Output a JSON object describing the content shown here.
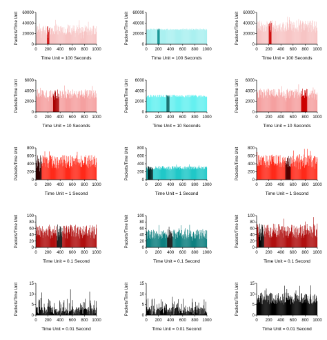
{
  "chart_data": [
    {
      "type": "bar",
      "color": "#f7c4c4",
      "highlight": "#cc0000",
      "ylabel": "Packets/Time Unit",
      "xlabel": "Time Unit = 100 Seconds",
      "xlim": [
        0,
        1000
      ],
      "ylim": [
        0,
        60000
      ],
      "yticks": [
        "0",
        "20000",
        "40000",
        "60000"
      ],
      "xticks": [
        "0",
        "200",
        "400",
        "600",
        "800",
        "1000"
      ],
      "base": 25000,
      "amp": 20000,
      "spike": 1,
      "seed": 11,
      "highlight_x": [
        180,
        220
      ],
      "highlight_level": 0.85
    },
    {
      "type": "bar",
      "color": "#aaf0f0",
      "highlight": "#008b8b",
      "ylabel": "Packets/Time Unit",
      "xlabel": "Time Unit = 100 Seconds",
      "xlim": [
        0,
        1000
      ],
      "ylim": [
        0,
        60000
      ],
      "yticks": [
        "0",
        "20000",
        "40000",
        "60000"
      ],
      "xticks": [
        "0",
        "200",
        "400",
        "600",
        "800",
        "1000"
      ],
      "base": 28000,
      "amp": 1500,
      "spike": 0,
      "seed": 12,
      "highlight_x": [
        180,
        220
      ],
      "highlight_level": 0.5,
      "flat": 1
    },
    {
      "type": "bar",
      "color": "#f7c4c4",
      "highlight": "#cc0000",
      "ylabel": "Packets/Time Unit",
      "xlabel": "Time Unit = 100 Seconds",
      "xlim": [
        0,
        1000
      ],
      "ylim": [
        0,
        60000
      ],
      "yticks": [
        "0",
        "20000",
        "40000",
        "60000"
      ],
      "xticks": [
        "0",
        "200",
        "400",
        "600",
        "800",
        "1000"
      ],
      "base": 32000,
      "amp": 22000,
      "spike": 1,
      "seed": 13,
      "highlight_x": [
        200,
        240
      ],
      "highlight_level": 0.45
    },
    {
      "type": "bar",
      "color": "#f5a0a0",
      "highlight": "#aa0000",
      "ylabel": "Packets/Time Unit",
      "xlabel": "Time Unit = 10 Seconds",
      "xlim": [
        0,
        1000
      ],
      "ylim": [
        0,
        6000
      ],
      "yticks": [
        "0",
        "2000",
        "4000",
        "6000"
      ],
      "xticks": [
        "0",
        "200",
        "400",
        "600",
        "800",
        "1000"
      ],
      "base": 3200,
      "amp": 1800,
      "spike": 1,
      "seed": 21,
      "highlight_x": [
        280,
        380
      ],
      "highlight_level": 0.9
    },
    {
      "type": "bar",
      "color": "#66f0f0",
      "highlight": "#006060",
      "ylabel": "Packets/Time Unit",
      "xlabel": "Time Unit = 10 Seconds",
      "xlim": [
        0,
        1000
      ],
      "ylim": [
        0,
        6000
      ],
      "yticks": [
        "0",
        "2000",
        "4000",
        "6000"
      ],
      "xticks": [
        "0",
        "200",
        "400",
        "600",
        "800",
        "1000"
      ],
      "base": 3000,
      "amp": 250,
      "spike": 0,
      "seed": 22,
      "highlight_x": [
        330,
        380
      ],
      "highlight_level": 0.5,
      "flat": 1
    },
    {
      "type": "bar",
      "color": "#f5a0a0",
      "highlight": "#cc0000",
      "ylabel": "Packets/Time Unit",
      "xlabel": "Time Unit = 10 Seconds",
      "xlim": [
        0,
        1000
      ],
      "ylim": [
        0,
        6000
      ],
      "yticks": [
        "0",
        "2000",
        "4000",
        "6000"
      ],
      "xticks": [
        "0",
        "200",
        "400",
        "600",
        "800",
        "1000"
      ],
      "base": 3300,
      "amp": 1900,
      "spike": 1,
      "seed": 23,
      "highlight_x": [
        730,
        830
      ],
      "highlight_level": 0.55
    },
    {
      "type": "bar",
      "color": "#ff2a1a",
      "highlight": "#330000",
      "ylabel": "Packets/Time Unit",
      "xlabel": "Time Unit = 1 Second",
      "xlim": [
        0,
        1000
      ],
      "ylim": [
        0,
        800
      ],
      "yticks": [
        "0",
        "200",
        "400",
        "600",
        "800"
      ],
      "xticks": [
        "0",
        "200",
        "400",
        "600",
        "800",
        "1000"
      ],
      "base": 420,
      "amp": 330,
      "spike": 1,
      "seed": 31,
      "highlight_x": [
        0,
        90
      ],
      "highlight_level": 0.6
    },
    {
      "type": "bar",
      "color": "#20c8c8",
      "highlight": "#002828",
      "ylabel": "Packets/Time Unit",
      "xlabel": "Time Unit = 1 Second",
      "xlim": [
        0,
        1000
      ],
      "ylim": [
        0,
        800
      ],
      "yticks": [
        "0",
        "200",
        "400",
        "600",
        "800"
      ],
      "xticks": [
        "0",
        "200",
        "400",
        "600",
        "800",
        "1000"
      ],
      "base": 290,
      "amp": 90,
      "spike": 0,
      "seed": 32,
      "highlight_x": [
        20,
        110
      ],
      "highlight_level": 0.5
    },
    {
      "type": "bar",
      "color": "#ff2a1a",
      "highlight": "#550000",
      "ylabel": "Packets/Time Unit",
      "xlabel": "Time Unit = 1 Second",
      "xlim": [
        0,
        1000
      ],
      "ylim": [
        0,
        800
      ],
      "yticks": [
        "0",
        "200",
        "400",
        "600",
        "800"
      ],
      "xticks": [
        "0",
        "200",
        "400",
        "600",
        "800",
        "1000"
      ],
      "base": 430,
      "amp": 340,
      "spike": 1,
      "seed": 33,
      "highlight_x": [
        470,
        560
      ],
      "highlight_level": 0.6
    },
    {
      "type": "bar",
      "color": "#b01010",
      "highlight": "#000000",
      "ylabel": "Packets/Time Unit",
      "xlabel": "Time Unit = 0.1 Second",
      "xlim": [
        0,
        1000
      ],
      "ylim": [
        0,
        100
      ],
      "yticks": [
        "0",
        "20",
        "40",
        "60",
        "80",
        "100"
      ],
      "xticks": [
        "0",
        "200",
        "400",
        "600",
        "800",
        "1000"
      ],
      "base": 45,
      "amp": 45,
      "spike": 1,
      "seed": 41,
      "highlight_x": [
        340,
        430
      ],
      "highlight_level": 0.7
    },
    {
      "type": "bar",
      "color": "#0f8080",
      "highlight": "#000000",
      "ylabel": "Packets/Time Unit",
      "xlabel": "Time Unit = 0.1 Second",
      "xlim": [
        0,
        1000
      ],
      "ylim": [
        0,
        100
      ],
      "yticks": [
        "0",
        "20",
        "40",
        "60",
        "80",
        "100"
      ],
      "xticks": [
        "0",
        "200",
        "400",
        "600",
        "800",
        "1000"
      ],
      "base": 38,
      "amp": 32,
      "spike": 1,
      "seed": 42,
      "highlight_x": [
        340,
        430
      ],
      "highlight_level": 0.55
    },
    {
      "type": "bar",
      "color": "#b01010",
      "highlight": "#000000",
      "ylabel": "Packets/Time Unit",
      "xlabel": "Time Unit = 0.1 Second",
      "xlim": [
        0,
        1000
      ],
      "ylim": [
        0,
        100
      ],
      "yticks": [
        "0",
        "20",
        "40",
        "60",
        "80",
        "100"
      ],
      "xticks": [
        "0",
        "200",
        "400",
        "600",
        "800",
        "1000"
      ],
      "base": 48,
      "amp": 45,
      "spike": 1,
      "seed": 43,
      "highlight_x": [
        30,
        120
      ],
      "highlight_level": 0.75
    },
    {
      "type": "bar",
      "color": "#000000",
      "highlight": "#000000",
      "ylabel": "Packets/Time Unit",
      "xlabel": "Time Unit = 0.01 Second",
      "xlim": [
        0,
        1000
      ],
      "ylim": [
        0,
        15
      ],
      "yticks": [
        "0",
        "5",
        "10",
        "15"
      ],
      "xticks": [
        "0",
        "200",
        "400",
        "600",
        "800",
        "1000"
      ],
      "base": 4,
      "amp": 9,
      "spike": 1,
      "seed": 51,
      "sparse": 1
    },
    {
      "type": "bar",
      "color": "#000000",
      "highlight": "#000000",
      "ylabel": "Packets/Time Unit",
      "xlabel": "Time Unit = 0.01 Second",
      "xlim": [
        0,
        1000
      ],
      "ylim": [
        0,
        15
      ],
      "yticks": [
        "0",
        "5",
        "10",
        "15"
      ],
      "xticks": [
        "0",
        "200",
        "400",
        "600",
        "800",
        "1000"
      ],
      "base": 4,
      "amp": 9,
      "spike": 1,
      "seed": 52,
      "sparse": 1
    },
    {
      "type": "bar",
      "color": "#000000",
      "highlight": "#000000",
      "ylabel": "Packets/Time Unit",
      "xlabel": "Time Unit = 0.01 Second",
      "xlim": [
        0,
        1000
      ],
      "ylim": [
        0,
        15
      ],
      "yticks": [
        "0",
        "5",
        "10",
        "15"
      ],
      "xticks": [
        "0",
        "200",
        "400",
        "600",
        "800",
        "1000"
      ],
      "base": 5,
      "amp": 7,
      "spike": 1,
      "seed": 53,
      "dense": 1
    }
  ]
}
